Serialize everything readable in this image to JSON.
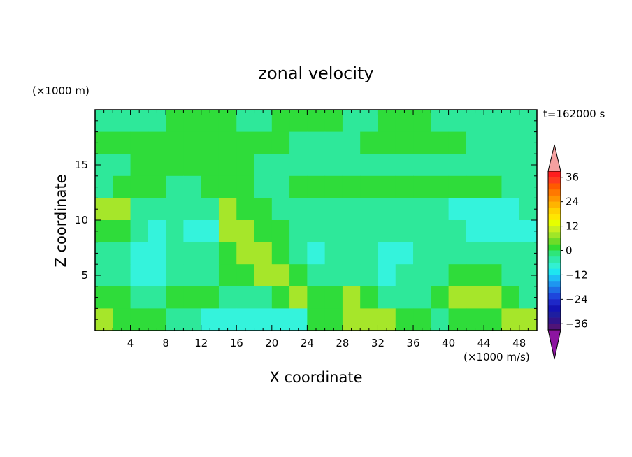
{
  "chart_data": {
    "type": "heatmap",
    "title": "zonal velocity",
    "xlabel": "X coordinate",
    "ylabel": "Z coordinate",
    "x_unit": "(×1000 m/s)",
    "y_unit": "(×1000 m)",
    "time_label": "t=162000 s",
    "xlim": [
      0,
      50
    ],
    "ylim": [
      0,
      20
    ],
    "x_ticks": [
      "4",
      "8",
      "12",
      "16",
      "20",
      "24",
      "28",
      "32",
      "36",
      "40",
      "44",
      "48"
    ],
    "y_ticks": [
      "5",
      "10",
      "15"
    ],
    "colorbar": {
      "levels": [
        -42,
        -39,
        -36,
        -33,
        -30,
        -27,
        -24,
        -21,
        -18,
        -15,
        -12,
        -9,
        -6,
        -3,
        0,
        3,
        6,
        9,
        12,
        15,
        18,
        21,
        24,
        27,
        30,
        33,
        36,
        39,
        42
      ],
      "tick_labels": [
        "36",
        "24",
        "12",
        "0",
        "−12",
        "−24",
        "−36"
      ],
      "colors": [
        "#f5a0a0",
        "#ff1e1e",
        "#ff3c1e",
        "#ff5a00",
        "#ff7800",
        "#ff9600",
        "#ffb400",
        "#ffd200",
        "#ffe600",
        "#e6ff00",
        "#c8f020",
        "#a0e628",
        "#6edc28",
        "#32dc32",
        "#2ee67a",
        "#2eeaaa",
        "#32f0d2",
        "#1ee6f0",
        "#1ebef5",
        "#1e96f0",
        "#1e6ee6",
        "#1e46dc",
        "#1e28c8",
        "#1414b4",
        "#1e1ea0",
        "#32148c",
        "#501478",
        "#8c14a0"
      ]
    },
    "field_description_rows": "values in m/s band classes; grid 25 cols (x=1..49) by 10 rows (z top→bottom)",
    "grid": [
      [
        0,
        0,
        0,
        0,
        1,
        1,
        1,
        1,
        0,
        0,
        1,
        1,
        1,
        1,
        0,
        0,
        1,
        1,
        1,
        0,
        0,
        0,
        0,
        0,
        0
      ],
      [
        1,
        1,
        1,
        1,
        1,
        1,
        1,
        1,
        1,
        1,
        1,
        0,
        0,
        0,
        0,
        1,
        1,
        1,
        1,
        1,
        1,
        0,
        0,
        0,
        0
      ],
      [
        0,
        0,
        1,
        1,
        1,
        1,
        1,
        1,
        1,
        0,
        0,
        0,
        0,
        0,
        0,
        0,
        0,
        0,
        0,
        0,
        0,
        0,
        0,
        0,
        0
      ],
      [
        0,
        1,
        1,
        1,
        0,
        0,
        1,
        1,
        1,
        0,
        0,
        1,
        1,
        1,
        1,
        1,
        1,
        1,
        1,
        1,
        1,
        1,
        1,
        0,
        0
      ],
      [
        2,
        2,
        0,
        0,
        0,
        0,
        0,
        2,
        1,
        1,
        0,
        0,
        0,
        0,
        0,
        0,
        0,
        0,
        0,
        0,
        -1,
        -1,
        -1,
        -1,
        0
      ],
      [
        1,
        1,
        0,
        -1,
        0,
        -1,
        -1,
        2,
        2,
        1,
        1,
        0,
        0,
        0,
        0,
        0,
        0,
        0,
        0,
        0,
        0,
        -1,
        -1,
        -1,
        -1
      ],
      [
        0,
        0,
        -1,
        -1,
        0,
        0,
        0,
        1,
        2,
        2,
        1,
        0,
        -1,
        0,
        0,
        0,
        -1,
        -1,
        0,
        0,
        0,
        0,
        0,
        0,
        0
      ],
      [
        0,
        0,
        -1,
        -1,
        0,
        0,
        0,
        1,
        1,
        2,
        2,
        1,
        0,
        0,
        0,
        0,
        -1,
        0,
        0,
        0,
        1,
        1,
        1,
        0,
        0
      ],
      [
        1,
        1,
        0,
        0,
        1,
        1,
        1,
        0,
        0,
        0,
        1,
        2,
        1,
        1,
        2,
        1,
        0,
        0,
        0,
        1,
        2,
        2,
        2,
        1,
        0
      ],
      [
        2,
        1,
        1,
        1,
        0,
        0,
        -1,
        -1,
        -1,
        -1,
        -1,
        -1,
        1,
        1,
        2,
        2,
        2,
        1,
        1,
        0,
        1,
        1,
        1,
        2,
        2
      ]
    ]
  }
}
